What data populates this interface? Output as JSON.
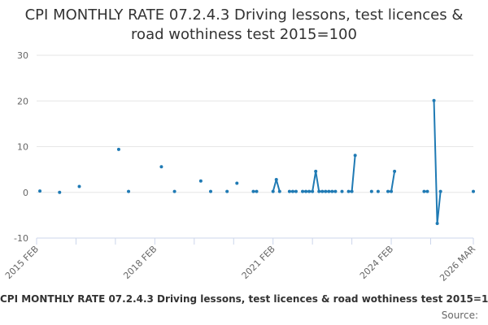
{
  "chart_data": {
    "type": "line",
    "title": "CPI MONTHLY RATE 07.2.4.3 Driving lessons, test licences & road wothiness test 2015=100",
    "xlabel": "",
    "ylabel": "",
    "ylim": [
      -10,
      30
    ],
    "yticks": [
      "-10",
      "0",
      "10",
      "20",
      "30"
    ],
    "xticks": [
      "2015 FEB",
      "2018 FEB",
      "2021 FEB",
      "2024 FEB",
      "2026 MAR"
    ],
    "legend": "CPI MONTHLY RATE 07.2.4.3 Driving lessons, test licences & road wothiness test 2015=100",
    "source_label": "Source:",
    "grid": true,
    "color": "#1f7ab4",
    "series": [
      {
        "name": "CPI MONTHLY RATE 07.2.4.3 Driving lessons, test licences & road wothiness test 2015=100",
        "points": [
          [
            "2015-03",
            0.3
          ],
          [
            "2015-09",
            0.0
          ],
          [
            "2016-03",
            1.3
          ],
          [
            "2017-03",
            9.4
          ],
          [
            "2017-06",
            0.2
          ],
          [
            "2018-04",
            5.6
          ],
          [
            "2018-08",
            0.2
          ],
          [
            "2019-04",
            2.5
          ],
          [
            "2019-07",
            0.2
          ],
          [
            "2019-12",
            0.2
          ],
          [
            "2020-03",
            2.0
          ],
          [
            "2020-08",
            0.2
          ],
          [
            "2020-09",
            0.2
          ],
          [
            "2021-02",
            0.2
          ],
          [
            "2021-03",
            2.8
          ],
          [
            "2021-04",
            0.2
          ],
          [
            "2021-07",
            0.2
          ],
          [
            "2021-08",
            0.2
          ],
          [
            "2021-09",
            0.2
          ],
          [
            "2021-11",
            0.2
          ],
          [
            "2021-12",
            0.2
          ],
          [
            "2022-01",
            0.2
          ],
          [
            "2022-02",
            0.2
          ],
          [
            "2022-03",
            4.6
          ],
          [
            "2022-04",
            0.2
          ],
          [
            "2022-05",
            0.2
          ],
          [
            "2022-06",
            0.2
          ],
          [
            "2022-07",
            0.2
          ],
          [
            "2022-08",
            0.2
          ],
          [
            "2022-09",
            0.2
          ],
          [
            "2022-11",
            0.2
          ],
          [
            "2023-01",
            0.2
          ],
          [
            "2023-02",
            0.2
          ],
          [
            "2023-03",
            8.1
          ],
          [
            "2023-08",
            0.2
          ],
          [
            "2023-10",
            0.2
          ],
          [
            "2024-01",
            0.2
          ],
          [
            "2024-02",
            0.2
          ],
          [
            "2024-03",
            4.6
          ],
          [
            "2024-12",
            0.2
          ],
          [
            "2025-01",
            0.2
          ],
          [
            "2025-03",
            20.1
          ],
          [
            "2025-04",
            -6.8
          ],
          [
            "2025-05",
            0.2
          ],
          [
            "2026-03",
            0.2
          ]
        ]
      }
    ]
  }
}
